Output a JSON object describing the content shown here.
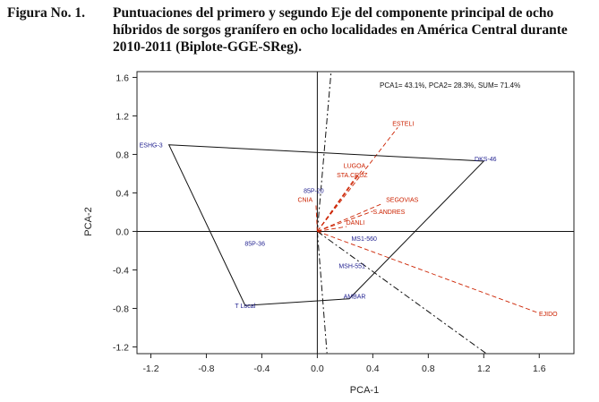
{
  "caption": {
    "label": "Figura No. 1.",
    "text": "Puntuaciones del primero y segundo Eje del componente principal de ocho híbridos de sorgos granífero en ocho localidades en América Central durante 2010-2011 (Biplote-GGE-SReg)."
  },
  "chart_data": {
    "type": "scatter",
    "title": "",
    "annotation": "PCA1= 43.1%, PCA2= 28.3%, SUM= 71.4%",
    "xlabel": "PCA-1",
    "ylabel": "PCA-2",
    "xlim": [
      -1.3,
      1.85
    ],
    "ylim": [
      -1.27,
      1.66
    ],
    "xticks": [
      "-1.2",
      "-0.8",
      "-0.4",
      "0.0",
      "0.4",
      "0.8",
      "1.2",
      "1.6"
    ],
    "yticks": [
      "1.6",
      "1.2",
      "0.8",
      "0.4",
      "0.0",
      "-0.4",
      "-0.8",
      "-1.2"
    ],
    "grid": false,
    "colors": {
      "genotype": "#1f1f8f",
      "environment": "#cc2200",
      "polygon": "#111111"
    },
    "genotypes": [
      {
        "label": "ESHG-3",
        "x": -1.07,
        "y": 0.9
      },
      {
        "label": "DKS-46",
        "x": 1.2,
        "y": 0.73
      },
      {
        "label": "85P-20",
        "x": 0.0,
        "y": 0.4
      },
      {
        "label": "85P-36",
        "x": -0.45,
        "y": -0.15
      },
      {
        "label": "MS1-560",
        "x": 0.26,
        "y": -0.1
      },
      {
        "label": "MSH-551",
        "x": 0.25,
        "y": -0.38
      },
      {
        "label": "T Local",
        "x": -0.52,
        "y": -0.77
      },
      {
        "label": "AMBAR",
        "x": 0.23,
        "y": -0.7
      }
    ],
    "environments": [
      {
        "label": "ESTELI",
        "x": 0.58,
        "y": 1.08
      },
      {
        "label": "LUGOA",
        "x": 0.32,
        "y": 0.63
      },
      {
        "label": "STA.CRUZ",
        "x": 0.29,
        "y": 0.59
      },
      {
        "label": "CNIA",
        "x": -0.01,
        "y": 0.29
      },
      {
        "label": "SEGOVIAS",
        "x": 0.47,
        "y": 0.29
      },
      {
        "label": "S.ANDRES",
        "x": 0.4,
        "y": 0.21
      },
      {
        "label": "DANLI",
        "x": 0.21,
        "y": 0.05
      },
      {
        "label": "EJIDO",
        "x": 1.6,
        "y": -0.85
      }
    ],
    "polygon": [
      "ESHG-3",
      "DKS-46",
      "AMBAR",
      "T Local"
    ]
  }
}
